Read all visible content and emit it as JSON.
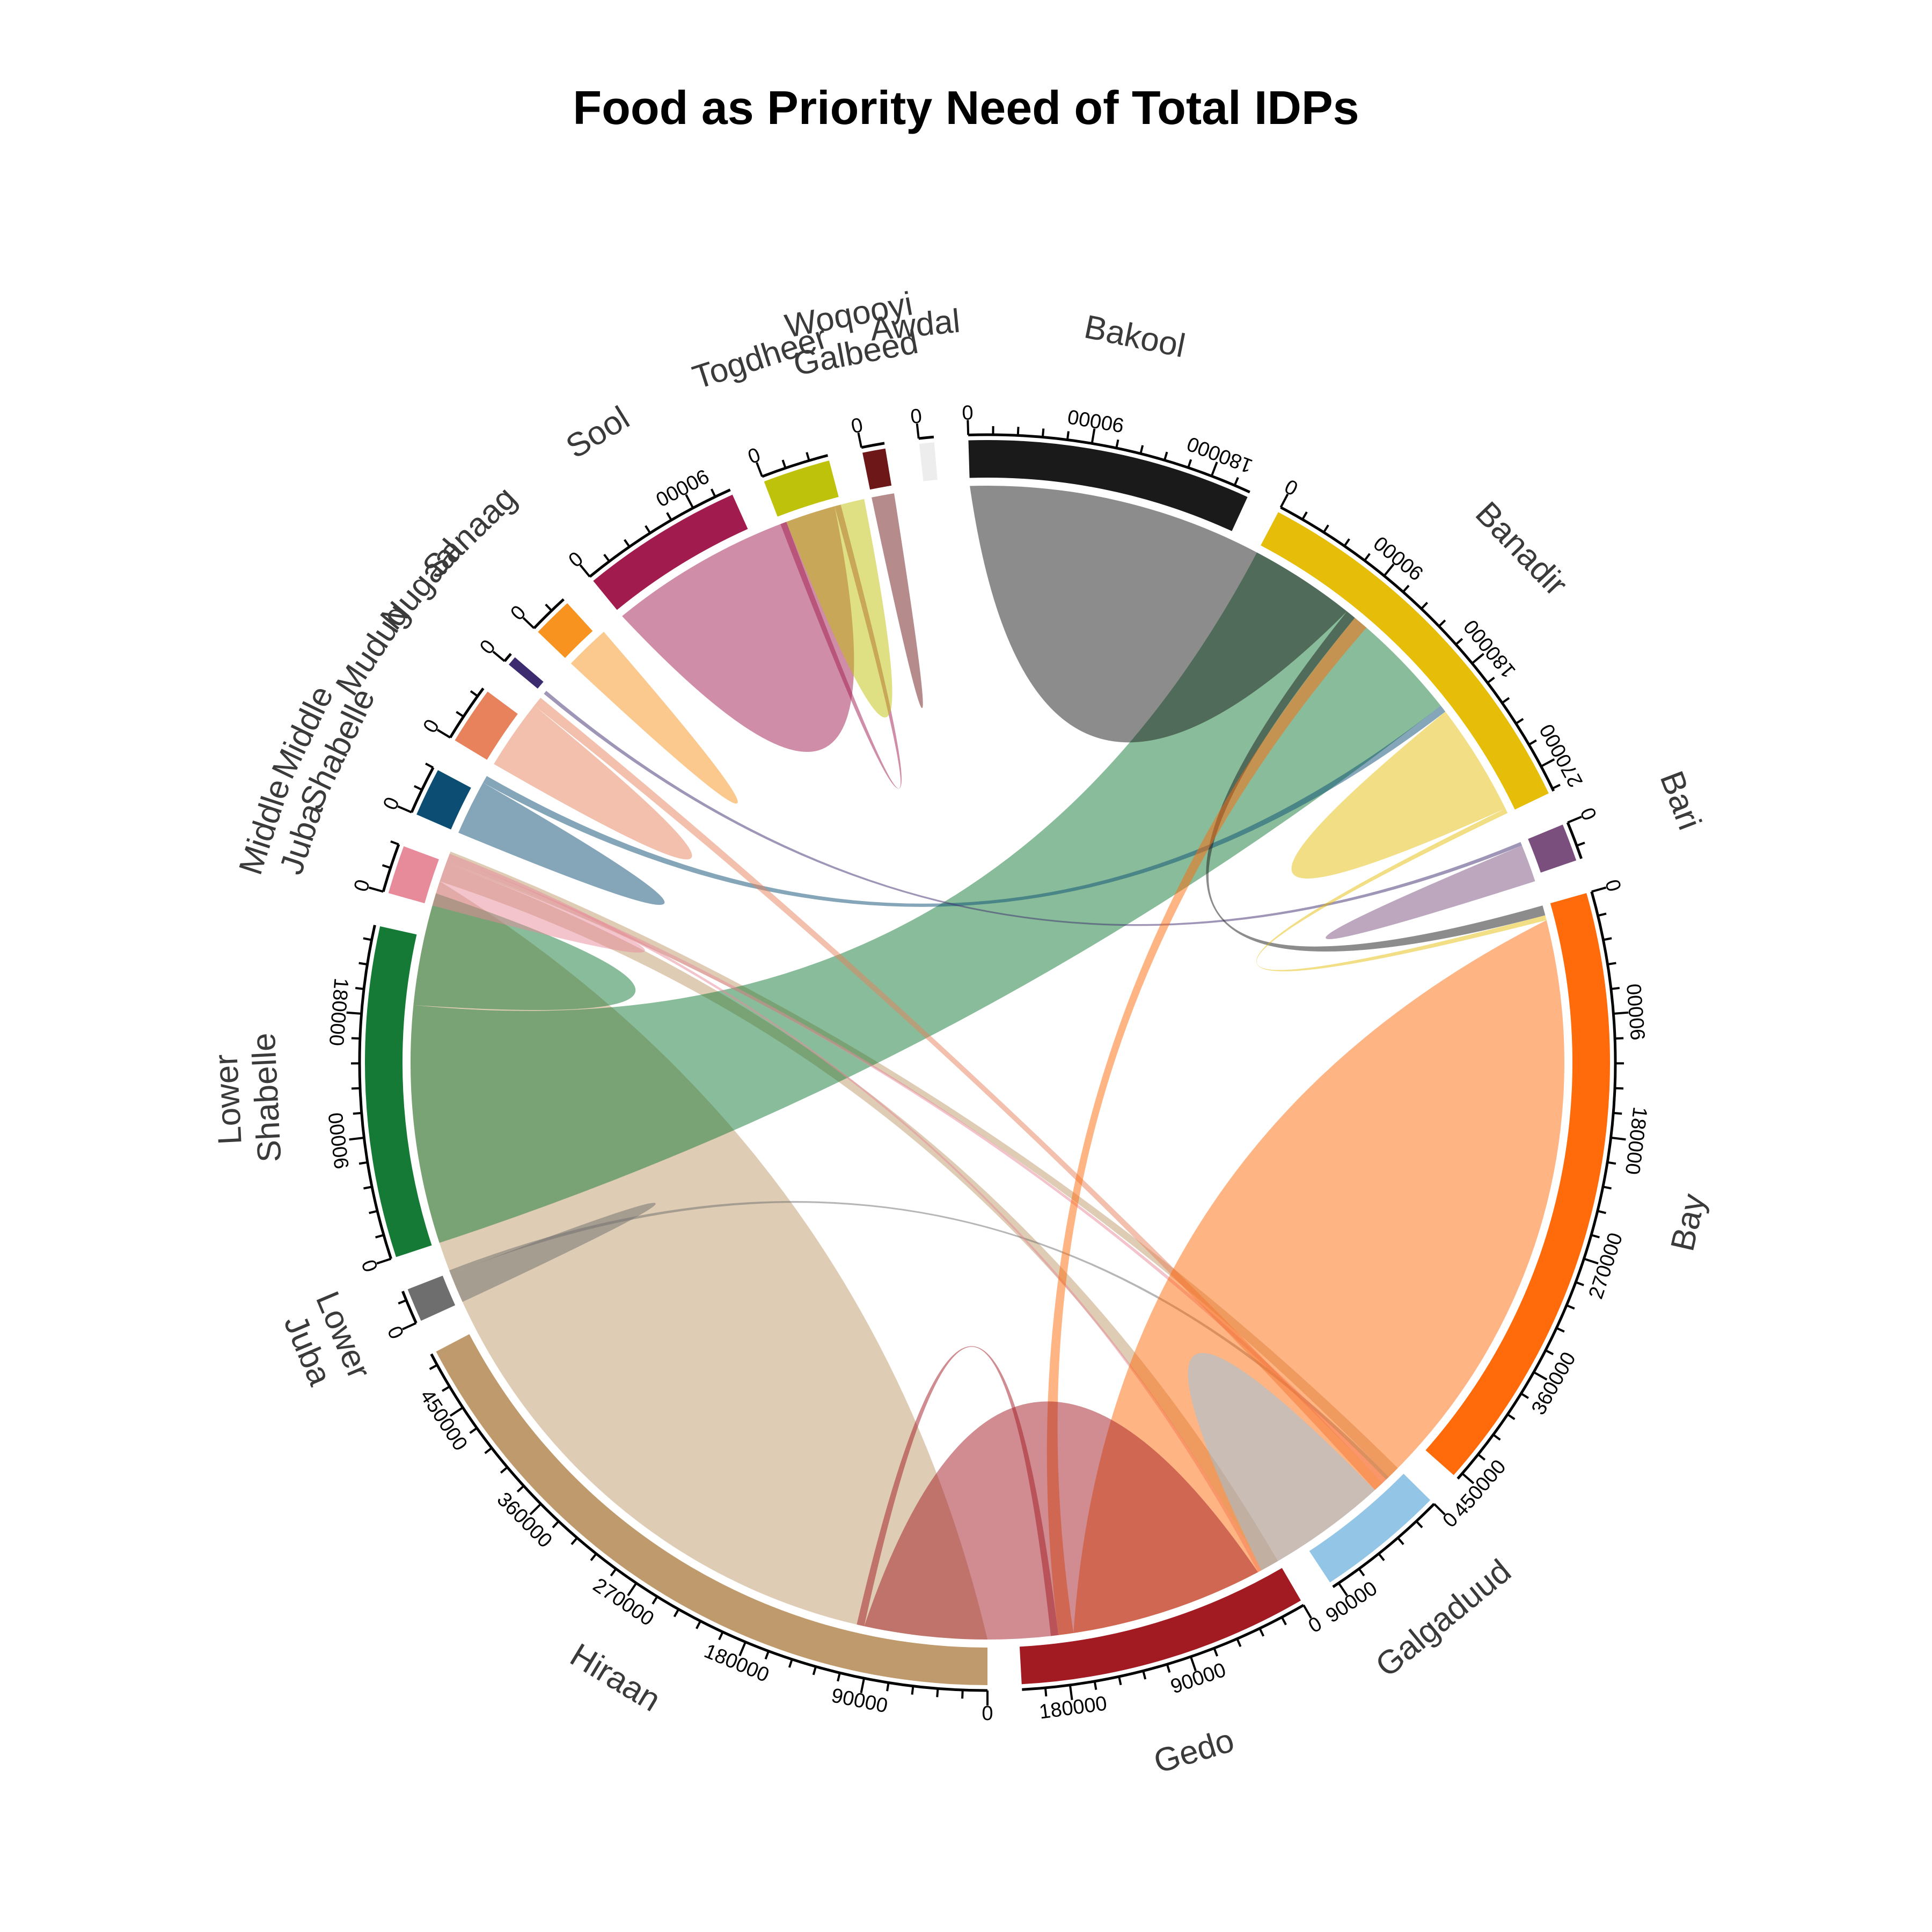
{
  "chart_data": {
    "type": "chord",
    "title": "Food as Priority Need of Total IDPs",
    "tick_step": 90000,
    "sectors": [
      {
        "id": "hiraan",
        "label": [
          "Hiraan"
        ],
        "total": 495000,
        "color": "#BF9A6C"
      },
      {
        "id": "lower_juba",
        "label": [
          "Lower",
          "Juba"
        ],
        "total": 25000,
        "color": "#6E6E6E"
      },
      {
        "id": "lower_shabelle",
        "label": [
          "Lower",
          "Shabelle"
        ],
        "total": 245000,
        "color": "#147A35"
      },
      {
        "id": "middle_juba",
        "label": [
          "Middle",
          "Juba"
        ],
        "total": 36000,
        "color": "#E78A9A"
      },
      {
        "id": "middle_shabelle",
        "label": [
          "Middle",
          "Shabelle"
        ],
        "total": 36000,
        "color": "#0C4E73"
      },
      {
        "id": "mudug",
        "label": [
          "Mudug"
        ],
        "total": 43000,
        "color": "#E8825C"
      },
      {
        "id": "nugaal",
        "label": [
          "Nugaal"
        ],
        "total": 7000,
        "color": "#3D2B70"
      },
      {
        "id": "sanaag",
        "label": [
          "Sanaag"
        ],
        "total": 30000,
        "color": "#F7931E"
      },
      {
        "id": "sool",
        "label": [
          "Sool"
        ],
        "total": 120000,
        "color": "#A21B4F"
      },
      {
        "id": "togdheer",
        "label": [
          "Togdheer"
        ],
        "total": 50000,
        "color": "#BFC20A"
      },
      {
        "id": "woqooyi_galbeed",
        "label": [
          "Woqooyi",
          "Galbeed"
        ],
        "total": 17000,
        "color": "#6D1719"
      },
      {
        "id": "awdal",
        "label": [
          "Awdal"
        ],
        "total": 11000,
        "color": "#EDEDED"
      },
      {
        "id": "bakool",
        "label": [
          "Bakool"
        ],
        "total": 210000,
        "color": "#1A1A1A"
      },
      {
        "id": "banadir",
        "label": [
          "Banadir"
        ],
        "total": 290000,
        "color": "#E6BE0A"
      },
      {
        "id": "bari",
        "label": [
          "Bari"
        ],
        "total": 28000,
        "color": "#7A4F7E"
      },
      {
        "id": "bay",
        "label": [
          "Bay"
        ],
        "total": 455000,
        "color": "#FF6A0A"
      },
      {
        "id": "galgaduud",
        "label": [
          "Galgaduud"
        ],
        "total": 95000,
        "color": "#93C6E6"
      },
      {
        "id": "gedo",
        "label": [
          "Gedo"
        ],
        "total": 215000,
        "color": "#A21A22"
      }
    ],
    "flows": [
      {
        "from": "hiraan",
        "to": "hiraan",
        "value": 430000
      },
      {
        "from": "hiraan",
        "to": "gedo",
        "value": 15000
      },
      {
        "from": "hiraan",
        "to": "galgaduud",
        "value": 10000
      },
      {
        "from": "lower_juba",
        "to": "lower_juba",
        "value": 12000
      },
      {
        "from": "lower_juba",
        "to": "galgaduud",
        "value": 3000
      },
      {
        "from": "lower_shabelle",
        "to": "banadir",
        "value": 190000
      },
      {
        "from": "lower_shabelle",
        "to": "lower_shabelle",
        "value": 45000
      },
      {
        "from": "middle_juba",
        "to": "middle_juba",
        "value": 18000
      },
      {
        "from": "middle_juba",
        "to": "galgaduud",
        "value": 4000
      },
      {
        "from": "middle_juba",
        "to": "gedo",
        "value": 3000
      },
      {
        "from": "middle_shabelle",
        "to": "middle_shabelle",
        "value": 22000
      },
      {
        "from": "middle_shabelle",
        "to": "banadir",
        "value": 6000
      },
      {
        "from": "mudug",
        "to": "mudug",
        "value": 28000
      },
      {
        "from": "mudug",
        "to": "galgaduud",
        "value": 8000
      },
      {
        "from": "nugaal",
        "to": "bari",
        "value": 3000
      },
      {
        "from": "sanaag",
        "to": "sanaag",
        "value": 18000
      },
      {
        "from": "sool",
        "to": "sool",
        "value": 95000
      },
      {
        "from": "sool",
        "to": "togdheer",
        "value": 5000
      },
      {
        "from": "togdheer",
        "to": "togdheer",
        "value": 32000
      },
      {
        "from": "woqooyi_galbeed",
        "to": "woqooyi_galbeed",
        "value": 9000
      },
      {
        "from": "bakool",
        "to": "bakool",
        "value": 160000
      },
      {
        "from": "bakool",
        "to": "bay",
        "value": 8000
      },
      {
        "from": "banadir",
        "to": "banadir",
        "value": 45000
      },
      {
        "from": "banadir",
        "to": "bay",
        "value": 4000
      },
      {
        "from": "bari",
        "to": "bari",
        "value": 15000
      },
      {
        "from": "bay",
        "to": "bay",
        "value": 380000
      },
      {
        "from": "bay",
        "to": "bakool",
        "value": 12000
      },
      {
        "from": "galgaduud",
        "to": "galgaduud",
        "value": 55000
      },
      {
        "from": "gedo",
        "to": "gedo",
        "value": 160000
      },
      {
        "from": "gedo",
        "to": "bay",
        "value": 6000
      }
    ]
  }
}
